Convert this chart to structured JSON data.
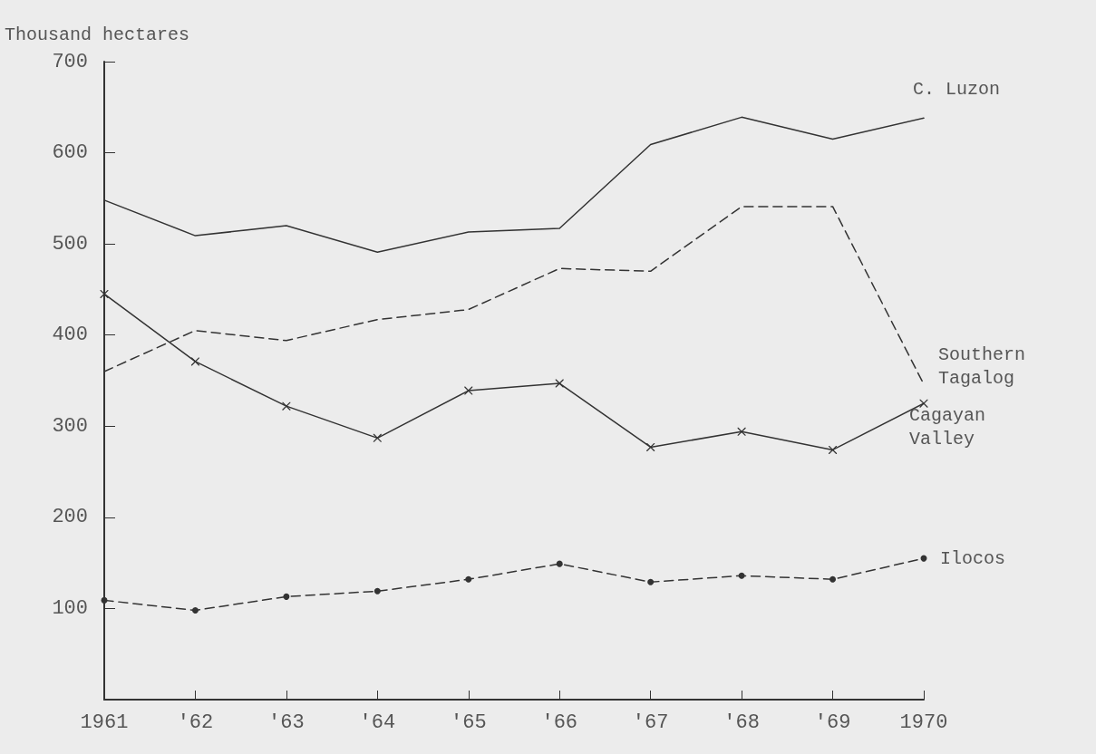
{
  "chart_data": {
    "type": "line",
    "ylabel": "Thousand hectares",
    "categories": [
      "1961",
      "'62",
      "'63",
      "'64",
      "'65",
      "'66",
      "'67",
      "'68",
      "'69",
      "1970"
    ],
    "ylim": [
      0,
      700
    ],
    "yticks": [
      100,
      200,
      300,
      400,
      500,
      600,
      700
    ],
    "grid": false,
    "legend": false,
    "series": [
      {
        "name": "C. Luzon",
        "color": "#333333",
        "line_style": "solid",
        "marker": "none",
        "values": [
          548,
          509,
          520,
          491,
          513,
          517,
          609,
          639,
          615,
          638
        ]
      },
      {
        "name": "Southern Tagalog",
        "color": "#333333",
        "line_style": "dashed",
        "marker": "none",
        "values": [
          360,
          405,
          394,
          417,
          428,
          473,
          470,
          541,
          541,
          346
        ]
      },
      {
        "name": "Cagayan Valley",
        "color": "#333333",
        "line_style": "solid",
        "marker": "cross",
        "values": [
          445,
          371,
          322,
          287,
          339,
          347,
          277,
          294,
          274,
          325
        ]
      },
      {
        "name": "Ilocos",
        "color": "#333333",
        "line_style": "dashed",
        "marker": "circle",
        "values": [
          109,
          98,
          113,
          119,
          132,
          149,
          129,
          136,
          132,
          155
        ]
      }
    ]
  }
}
